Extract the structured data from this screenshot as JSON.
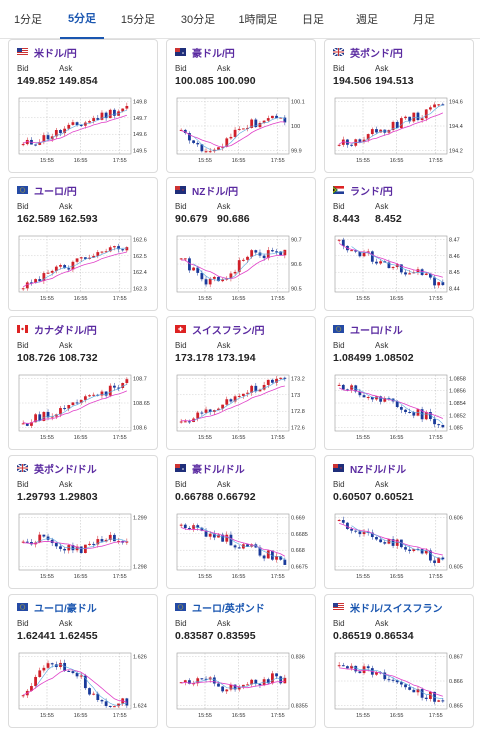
{
  "tabs": [
    {
      "label": "1分足",
      "active": false
    },
    {
      "label": "5分足",
      "active": true
    },
    {
      "label": "15分足",
      "active": false
    },
    {
      "label": "30分足",
      "active": false
    },
    {
      "label": "1時間足",
      "active": false
    },
    {
      "label": "日足",
      "active": false
    },
    {
      "label": "週足",
      "active": false
    },
    {
      "label": "月足",
      "active": false
    }
  ],
  "labels": {
    "bid": "Bid",
    "ask": "Ask"
  },
  "colors": {
    "up": "#d0202a",
    "down": "#1a3a9a",
    "ma": "#e040c8",
    "ma2": "#58a8e0",
    "pair_purple": "#5a2aa0",
    "pair_blue": "#1a56b0"
  },
  "cards": [
    {
      "pair": "米ドル/円",
      "flag": "us",
      "bid": "149.852",
      "ask": "149.854",
      "ticks": [
        "149.8",
        "149.7",
        "149.6",
        "149.5"
      ],
      "x_ticks": [
        "15:55",
        "16:55",
        "17:55"
      ],
      "chart_data": {
        "type": "candlestick",
        "series": "up",
        "yrange": [
          149.5,
          149.87
        ]
      }
    },
    {
      "pair": "豪ドル/円",
      "flag": "au",
      "bid": "100.085",
      "ask": "100.090",
      "ticks": [
        "100.1",
        "100",
        "99.9"
      ],
      "x_ticks": [
        "15:55",
        "16:55",
        "17:55"
      ],
      "chart_data": {
        "type": "candlestick",
        "series": "vshape",
        "yrange": [
          99.88,
          100.11
        ]
      }
    },
    {
      "pair": "英ポンド/円",
      "flag": "gb",
      "bid": "194.506",
      "ask": "194.513",
      "ticks": [
        "194.6",
        "194.4",
        "194.2"
      ],
      "x_ticks": [
        "15:55",
        "16:55",
        "17:55"
      ],
      "chart_data": {
        "type": "candlestick",
        "series": "up",
        "yrange": [
          194.15,
          194.65
        ]
      }
    },
    {
      "pair": "ユーロ/円",
      "flag": "eu",
      "bid": "162.589",
      "ask": "162.593",
      "ticks": [
        "162.6",
        "162.5",
        "162.4",
        "162.3"
      ],
      "x_ticks": [
        "15:55",
        "16:55",
        "17:55"
      ],
      "chart_data": {
        "type": "candlestick",
        "series": "up",
        "yrange": [
          162.28,
          162.63
        ]
      }
    },
    {
      "pair": "NZドル/円",
      "flag": "nz",
      "bid": "90.679",
      "ask": "90.686",
      "ticks": [
        "90.7",
        "90.6",
        "90.5"
      ],
      "x_ticks": [
        "15:55",
        "16:55",
        "17:55"
      ],
      "chart_data": {
        "type": "candlestick",
        "series": "dipup",
        "yrange": [
          90.5,
          90.72
        ]
      }
    },
    {
      "pair": "ランド/円",
      "flag": "za",
      "bid": "8.443",
      "ask": "8.452",
      "ticks": [
        "8.47",
        "8.46",
        "8.45",
        "8.44"
      ],
      "x_ticks": [
        "15:55",
        "16:55",
        "17:55"
      ],
      "chart_data": {
        "type": "candlestick",
        "series": "down",
        "yrange": [
          8.433,
          8.472
        ]
      }
    },
    {
      "pair": "カナダドル/円",
      "flag": "ca",
      "bid": "108.726",
      "ask": "108.732",
      "ticks": [
        "108.7",
        "108.65",
        "108.6"
      ],
      "x_ticks": [
        "15:55",
        "16:55",
        "17:55"
      ],
      "chart_data": {
        "type": "candlestick",
        "series": "up",
        "yrange": [
          108.58,
          108.74
        ]
      }
    },
    {
      "pair": "スイスフラン/円",
      "flag": "ch",
      "bid": "173.178",
      "ask": "173.194",
      "ticks": [
        "173.2",
        "173",
        "172.8",
        "172.6"
      ],
      "x_ticks": [
        "15:55",
        "16:55",
        "17:55"
      ],
      "chart_data": {
        "type": "candlestick",
        "series": "steepup",
        "yrange": [
          172.55,
          173.22
        ]
      }
    },
    {
      "pair": "ユーロ/ドル",
      "flag": "eu",
      "bid": "1.08499",
      "ask": "1.08502",
      "ticks": [
        "1.0858",
        "1.0856",
        "1.0854",
        "1.0852",
        "1.085"
      ],
      "x_ticks": [
        "15:55",
        "16:55",
        "17:55"
      ],
      "chart_data": {
        "type": "candlestick",
        "series": "down",
        "yrange": [
          1.0849,
          1.0859
        ]
      }
    },
    {
      "pair": "英ポンド/ドル",
      "flag": "gb",
      "bid": "1.29793",
      "ask": "1.29803",
      "ticks": [
        "1.299",
        "1.298"
      ],
      "x_ticks": [
        "15:55",
        "16:55",
        "17:55"
      ],
      "chart_data": {
        "type": "candlestick",
        "series": "flat",
        "yrange": [
          1.2975,
          1.2995
        ]
      }
    },
    {
      "pair": "豪ドル/ドル",
      "flag": "au",
      "bid": "0.66788",
      "ask": "0.66792",
      "ticks": [
        "0.669",
        "0.6685",
        "0.668",
        "0.6675"
      ],
      "x_ticks": [
        "15:55",
        "16:55",
        "17:55"
      ],
      "chart_data": {
        "type": "candlestick",
        "series": "down",
        "yrange": [
          0.6673,
          0.6692
        ]
      }
    },
    {
      "pair": "NZドル/ドル",
      "flag": "nz",
      "bid": "0.60507",
      "ask": "0.60521",
      "ticks": [
        "0.606",
        "0.605"
      ],
      "x_ticks": [
        "15:55",
        "16:55",
        "17:55"
      ],
      "chart_data": {
        "type": "candlestick",
        "series": "down",
        "yrange": [
          0.6048,
          0.6066
        ]
      }
    },
    {
      "pair": "ユーロ/豪ドル",
      "flag": "eu",
      "blue": true,
      "bid": "1.62441",
      "ask": "1.62455",
      "ticks": [
        "1.626",
        "1.624"
      ],
      "x_ticks": [
        "15:55",
        "16:55",
        "17:55"
      ],
      "chart_data": {
        "type": "candlestick",
        "series": "humpdown",
        "yrange": [
          1.6228,
          1.6268
        ]
      }
    },
    {
      "pair": "ユーロ/英ポンド",
      "flag": "eu",
      "blue": true,
      "bid": "0.83587",
      "ask": "0.83595",
      "ticks": [
        "0.836",
        "0.8355"
      ],
      "x_ticks": [
        "15:55",
        "16:55",
        "17:55"
      ],
      "chart_data": {
        "type": "candlestick",
        "series": "flat",
        "yrange": [
          0.8352,
          0.8363
        ]
      }
    },
    {
      "pair": "米ドル/スイスフラン",
      "flag": "us",
      "blue": true,
      "bid": "0.86519",
      "ask": "0.86534",
      "ticks": [
        "0.867",
        "0.866",
        "0.865"
      ],
      "x_ticks": [
        "15:55",
        "16:55",
        "17:55"
      ],
      "chart_data": {
        "type": "candlestick",
        "series": "down",
        "yrange": [
          0.8648,
          0.8672
        ]
      }
    }
  ]
}
